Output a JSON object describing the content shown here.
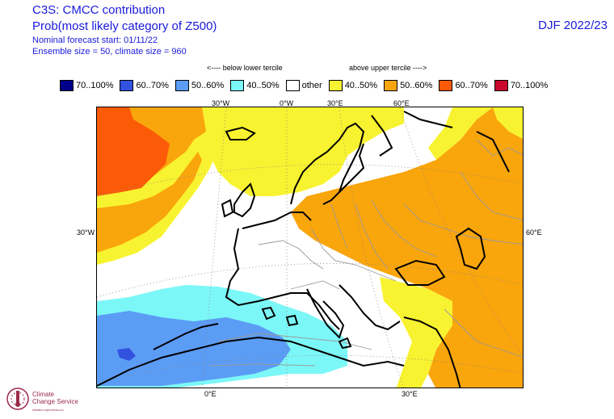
{
  "header": {
    "title": "C3S: CMCC contribution",
    "subtitle": "Prob(most likely category of Z500)",
    "forecast_start": "Nominal forecast start: 01/11/22",
    "ensemble": "Ensemble size = 50, climate size = 960",
    "season": "DJF 2022/23"
  },
  "tercile": {
    "below": "<---- below lower tercile",
    "above": "above upper tercile ---->"
  },
  "legend": [
    {
      "label": "70..100%",
      "color": "#00008b"
    },
    {
      "label": "60..70%",
      "color": "#3352e0"
    },
    {
      "label": "50..60%",
      "color": "#5b9cf5"
    },
    {
      "label": "40..50%",
      "color": "#7cf7f7"
    },
    {
      "label": "other",
      "color": "#ffffff"
    },
    {
      "label": "40..50%",
      "color": "#f8f330"
    },
    {
      "label": "50..60%",
      "color": "#f9a50c"
    },
    {
      "label": "60..70%",
      "color": "#fb5a07"
    },
    {
      "label": "70..100%",
      "color": "#c9082c"
    }
  ],
  "axis_labels": {
    "top": [
      "30°W",
      "0°W",
      "30°E",
      "60°E"
    ],
    "left": "30°W",
    "right": "60°E",
    "bottom": [
      "0°E",
      "30°E"
    ]
  },
  "logo": {
    "line1": "Climate",
    "line2": "Change Service",
    "line3": "climate.copernicus.eu"
  },
  "colors": {
    "text_blue": "#1a1adb",
    "coast": "#000000",
    "border": "#9a9a9a"
  }
}
